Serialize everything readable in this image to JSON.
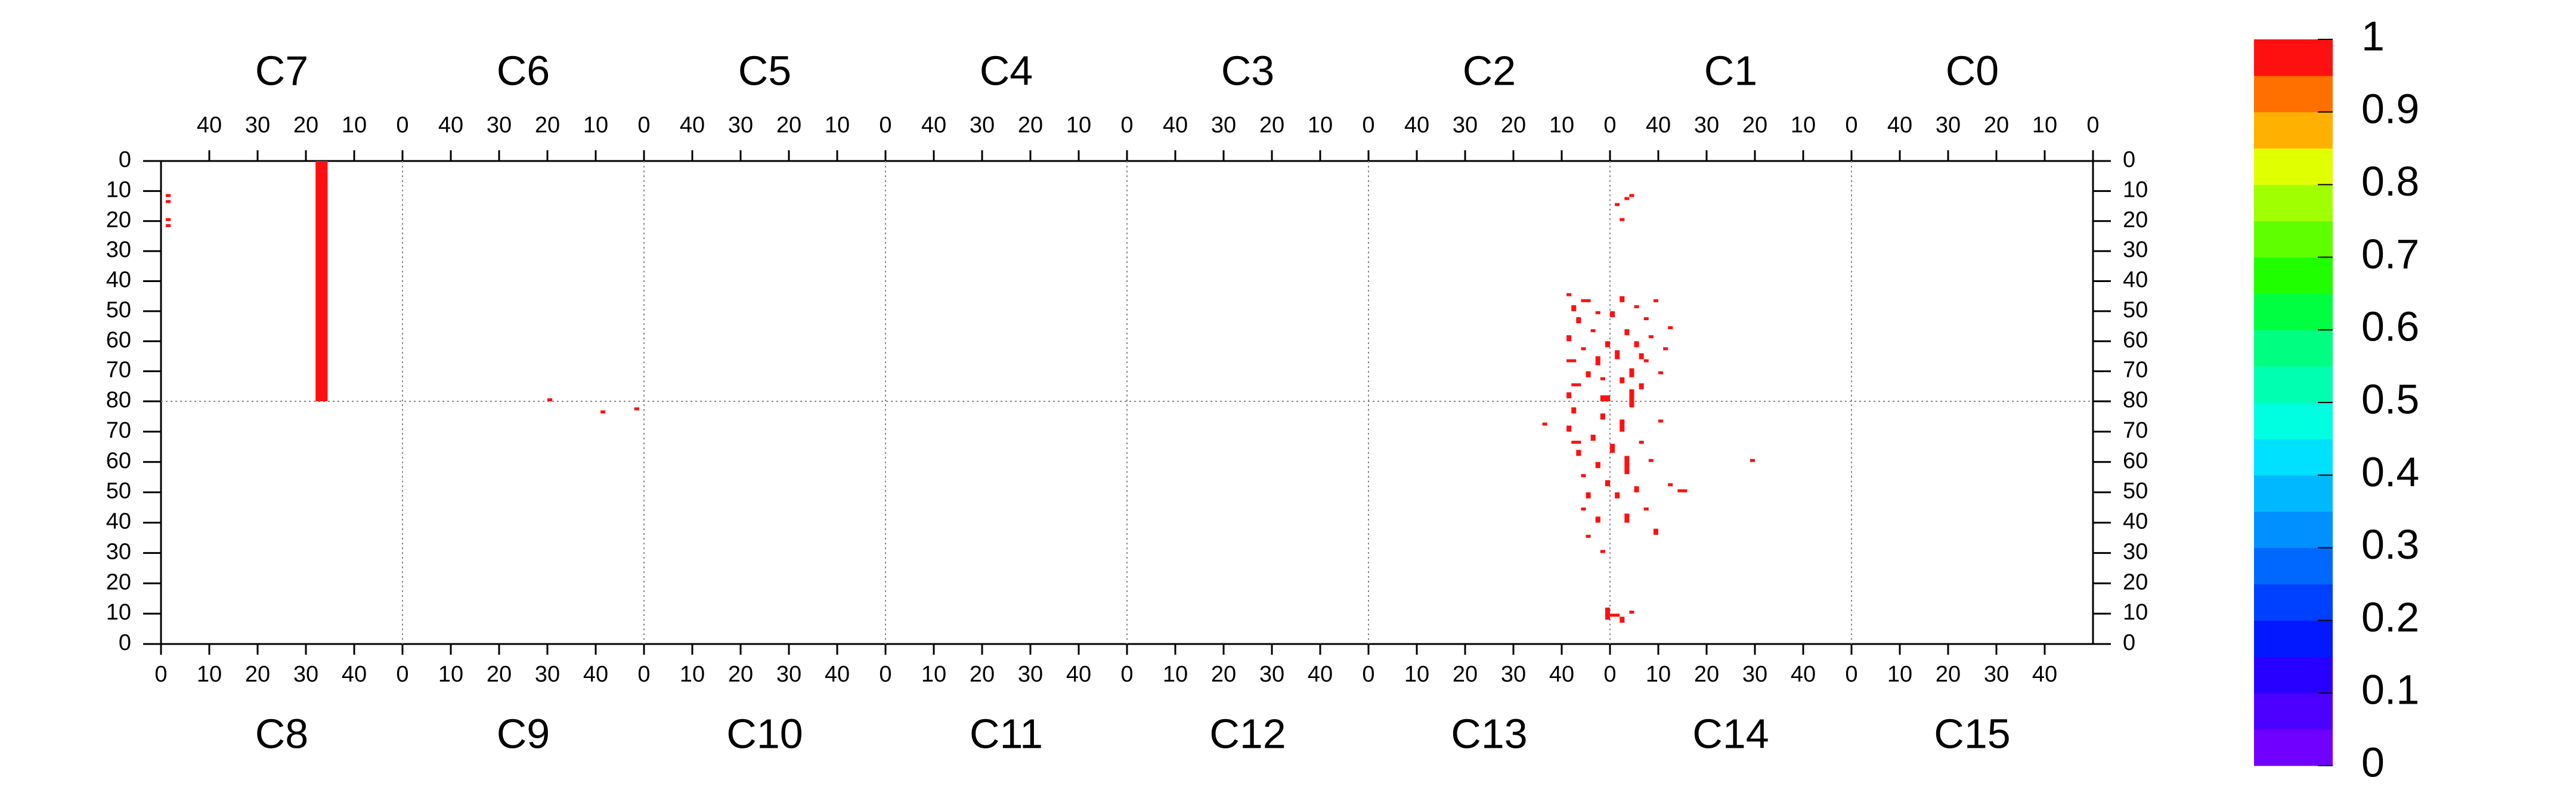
{
  "chart_data": {
    "type": "heatmap",
    "top": {
      "sections": [
        "C7",
        "C6",
        "C5",
        "C4",
        "C3",
        "C2",
        "C1",
        "C0"
      ],
      "xlim": [
        50,
        0
      ],
      "xticks": [
        40,
        30,
        20,
        10,
        0
      ],
      "ylim": [
        0,
        80
      ],
      "yticks": [
        0,
        10,
        20,
        30,
        40,
        50,
        60,
        70,
        80
      ],
      "cells": [
        [
          0,
          15.5,
          18,
          0,
          80,
          1
        ],
        [
          0,
          48,
          49,
          11,
          12,
          1
        ],
        [
          0,
          48,
          49,
          13,
          14,
          1
        ],
        [
          0,
          48,
          49,
          19,
          20,
          1
        ],
        [
          0,
          48,
          49,
          21,
          22,
          1
        ],
        [
          1,
          19,
          20,
          79,
          80,
          1
        ],
        [
          6,
          48,
          49,
          14,
          15,
          1
        ],
        [
          6,
          45,
          46,
          11,
          12,
          1
        ],
        [
          6,
          46,
          47,
          12,
          13,
          1
        ],
        [
          6,
          47,
          48,
          19,
          20,
          1
        ],
        [
          5,
          8,
          9,
          44,
          45,
          1
        ],
        [
          5,
          7,
          8,
          48,
          50,
          1
        ],
        [
          5,
          6,
          7,
          52,
          54,
          1
        ],
        [
          5,
          8,
          9,
          58,
          60,
          1
        ],
        [
          5,
          5,
          6,
          62,
          63,
          1
        ],
        [
          5,
          7,
          9,
          66,
          67,
          1
        ],
        [
          5,
          4,
          5,
          70,
          72,
          1
        ],
        [
          5,
          6,
          8,
          74,
          75,
          1
        ],
        [
          5,
          8,
          9,
          77,
          79,
          1
        ],
        [
          5,
          3,
          4,
          56,
          57,
          1
        ],
        [
          5,
          2,
          3,
          65,
          68,
          1
        ],
        [
          5,
          1,
          2,
          72,
          73,
          1
        ],
        [
          5,
          0,
          1,
          60,
          62,
          1
        ],
        [
          5,
          0,
          2,
          78,
          80,
          1
        ],
        [
          5,
          4,
          6,
          46,
          47,
          1
        ],
        [
          5,
          2,
          3,
          50,
          51,
          1
        ],
        [
          6,
          49,
          50,
          50,
          52,
          1
        ],
        [
          6,
          48,
          49,
          63,
          66,
          1
        ],
        [
          6,
          47,
          48,
          45,
          47,
          1
        ],
        [
          6,
          46,
          47,
          56,
          58,
          1
        ],
        [
          6,
          45,
          46,
          69,
          72,
          1
        ],
        [
          6,
          44,
          45,
          48,
          49,
          1
        ],
        [
          6,
          44,
          45,
          60,
          62,
          1
        ],
        [
          6,
          43,
          44,
          74,
          76,
          1
        ],
        [
          6,
          42,
          43,
          52,
          53,
          1
        ],
        [
          6,
          42,
          43,
          66,
          67,
          1
        ],
        [
          6,
          41,
          42,
          58,
          59,
          1
        ],
        [
          6,
          40,
          41,
          46,
          47,
          1
        ],
        [
          6,
          39,
          40,
          70,
          71,
          1
        ],
        [
          6,
          38,
          39,
          62,
          63,
          1
        ],
        [
          6,
          37,
          38,
          55,
          56,
          1
        ],
        [
          6,
          45,
          46,
          76,
          80,
          1
        ],
        [
          6,
          47,
          48,
          72,
          74,
          1
        ],
        [
          6,
          43,
          44,
          64,
          66,
          1
        ]
      ]
    },
    "bottom": {
      "sections": [
        "C8",
        "C9",
        "C10",
        "C11",
        "C12",
        "C13",
        "C14",
        "C15"
      ],
      "xlim": [
        0,
        50
      ],
      "xticks": [
        0,
        10,
        20,
        30,
        40
      ],
      "ylim": [
        80,
        0
      ],
      "yticks": [
        70,
        60,
        50,
        40,
        30,
        20,
        10,
        0
      ],
      "cells": [
        [
          1,
          41,
          42,
          76,
          77,
          1
        ],
        [
          1,
          48,
          49,
          77,
          78,
          1
        ],
        [
          6,
          29,
          30,
          60,
          61,
          1
        ],
        [
          5,
          49,
          50,
          8,
          12,
          1
        ],
        [
          6,
          0,
          2,
          9,
          10,
          1
        ],
        [
          6,
          2,
          3,
          7,
          9,
          1
        ],
        [
          6,
          4,
          5,
          10,
          11,
          1
        ],
        [
          5,
          36,
          37,
          72,
          73,
          1
        ],
        [
          5,
          41,
          42,
          70,
          72,
          1
        ],
        [
          5,
          42,
          43,
          76,
          78,
          1
        ],
        [
          5,
          43,
          44,
          62,
          64,
          1
        ],
        [
          5,
          44,
          45,
          55,
          56,
          1
        ],
        [
          5,
          45,
          46,
          48,
          50,
          1
        ],
        [
          5,
          46,
          47,
          67,
          69,
          1
        ],
        [
          5,
          47,
          48,
          40,
          42,
          1
        ],
        [
          5,
          47,
          48,
          58,
          60,
          1
        ],
        [
          5,
          48,
          49,
          74,
          76,
          1
        ],
        [
          5,
          49,
          50,
          52,
          54,
          1
        ],
        [
          5,
          42,
          44,
          66,
          67,
          1
        ],
        [
          5,
          45,
          46,
          35,
          36,
          1
        ],
        [
          5,
          48,
          49,
          30,
          31,
          1
        ],
        [
          5,
          44,
          45,
          44,
          45,
          1
        ],
        [
          6,
          0,
          1,
          63,
          66,
          1
        ],
        [
          6,
          1,
          2,
          48,
          50,
          1
        ],
        [
          6,
          2,
          3,
          70,
          74,
          1
        ],
        [
          6,
          3,
          4,
          40,
          43,
          1
        ],
        [
          6,
          3,
          4,
          56,
          62,
          1
        ],
        [
          6,
          4,
          5,
          78,
          80,
          1
        ],
        [
          6,
          5,
          6,
          50,
          52,
          1
        ],
        [
          6,
          6,
          7,
          66,
          67,
          1
        ],
        [
          6,
          7,
          8,
          44,
          45,
          1
        ],
        [
          6,
          8,
          9,
          60,
          61,
          1
        ],
        [
          6,
          10,
          11,
          73,
          74,
          1
        ],
        [
          6,
          12,
          13,
          52,
          53,
          1
        ],
        [
          6,
          14,
          16,
          50,
          51,
          1
        ],
        [
          6,
          9,
          10,
          36,
          38,
          1
        ]
      ]
    },
    "zlim": [
      0,
      1
    ],
    "zticks": [
      0,
      0.1,
      0.2,
      0.3,
      0.4,
      0.5,
      0.6,
      0.7,
      0.8,
      0.9,
      1
    ],
    "colors": [
      "#7000ff",
      "#4c00ff",
      "#2800ff",
      "#0418ff",
      "#0040ff",
      "#0068ff",
      "#0090ff",
      "#00b8ff",
      "#00e0ff",
      "#00ffe0",
      "#00ffb0",
      "#00ff80",
      "#00ff40",
      "#20ff00",
      "#60ff00",
      "#a0ff00",
      "#e0ff00",
      "#ffb000",
      "#ff7000",
      "#ff1010"
    ]
  }
}
